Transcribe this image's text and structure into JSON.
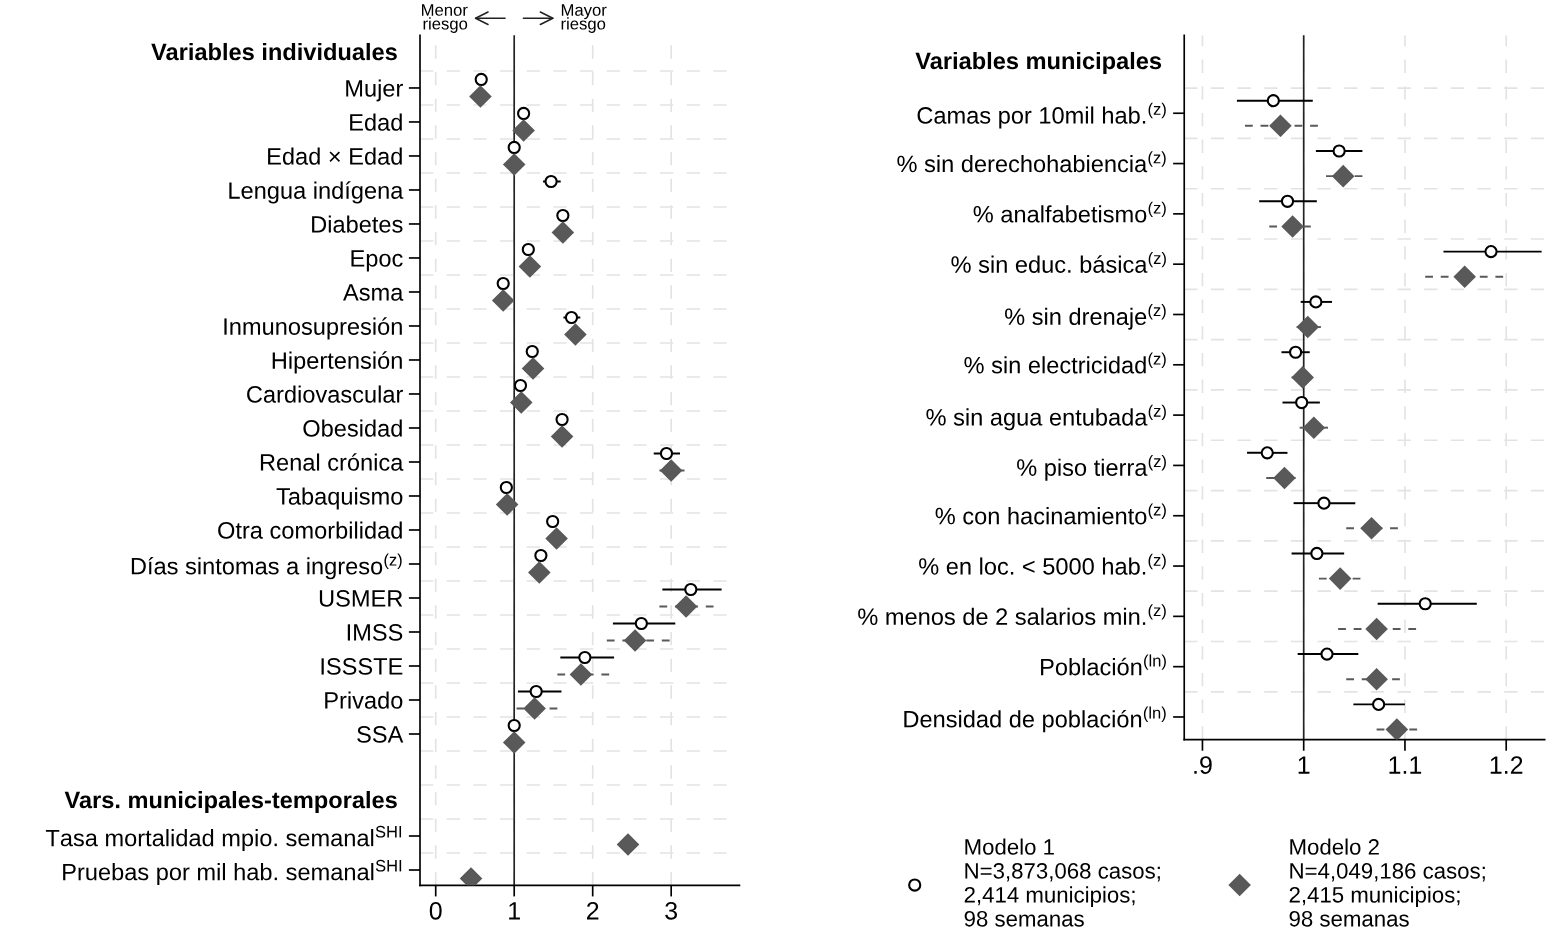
{
  "chart_data": [
    {
      "type": "scatter",
      "orientation": "horizontal",
      "categories": [
        null,
        "Mujer",
        "Edad",
        "Edad × Edad",
        "Lengua indígena",
        "Diabetes",
        "Epoc",
        "Asma",
        "Inmunosupresión",
        "Hipertensión",
        "Cardiovascular",
        "Obesidad",
        "Renal crónica",
        "Tabaquismo",
        "Otra comorbilidad",
        "Días sintomas a ingreso$^{(z)}$",
        "USMER",
        "IMSS",
        "ISSSTE",
        "Privado",
        "SSA",
        null,
        null,
        "Tasa mortalidad mpio. semanal$^{SHI}$",
        "Pruebas por mil hab. semanal$^{SHI}$"
      ],
      "series": [
        {
          "color": "#000000",
          "marker": "circle",
          "line_style": "solid",
          "values": [
            null,
            0.58,
            1.12,
            1.0,
            1.47,
            1.62,
            1.18,
            0.86,
            1.73,
            1.23,
            1.08,
            1.61,
            2.94,
            0.9,
            1.49,
            1.34,
            3.25,
            2.62,
            1.9,
            1.28,
            1.0,
            null,
            null,
            null,
            null
          ],
          "errors": [
            null,
            null,
            null,
            null,
            [
              1.38,
              1.58
            ],
            null,
            null,
            null,
            [
              1.64,
              1.83
            ],
            null,
            null,
            null,
            [
              2.79,
              3.1
            ],
            null,
            null,
            null,
            [
              2.9,
              3.63
            ],
            [
              2.27,
              3.04
            ],
            [
              1.6,
              2.26
            ],
            [
              1.06,
              1.59
            ],
            null,
            null,
            null,
            null,
            null
          ]
        },
        {
          "color": "#595959",
          "marker": "diamond",
          "line_style": "dashed",
          "values": [
            null,
            0.57,
            1.12,
            1.0,
            null,
            1.62,
            1.2,
            0.86,
            1.78,
            1.24,
            1.09,
            1.61,
            3.0,
            0.91,
            1.54,
            1.32,
            3.19,
            2.54,
            1.85,
            1.26,
            1.0,
            null,
            null,
            2.45,
            0.45
          ],
          "errors": [
            null,
            null,
            null,
            null,
            null,
            null,
            null,
            null,
            null,
            null,
            null,
            null,
            [
              2.85,
              3.17
            ],
            null,
            null,
            null,
            [
              2.85,
              3.54
            ],
            [
              2.18,
              2.98
            ],
            [
              1.55,
              2.21
            ],
            [
              1.03,
              1.55
            ],
            null,
            null,
            null,
            null,
            null
          ]
        }
      ],
      "xlim": [
        -0.2,
        3.87
      ],
      "xticks": [
        0,
        1,
        2,
        3
      ],
      "grid": true,
      "ref_lines": [
        {
          "axis": "x",
          "value": 1
        }
      ],
      "annotations": [
        "Variables individuales",
        "Vars. municipales-temporales",
        "Menor\nriesgo",
        "Mayor\nriesgo"
      ]
    },
    {
      "type": "scatter",
      "orientation": "horizontal",
      "categories": [
        null,
        "Camas por 10mil hab.$^{(z)}$",
        "% sin derechohabiencia$^{(z)}$",
        "% analfabetismo$^{(z)}$",
        "% sin educ. básica$^{(z)}$",
        "% sin drenaje$^{(z)}$",
        "% sin electricidad$^{(z)}$",
        "% sin agua entubada$^{(z)}$",
        "% piso tierra$^{(z)}$",
        "% con hacinamiento$^{(z)}$",
        "% en loc. < 5000 hab.$^{(z)}$",
        "% menos de 2 salarios min.$^{(z)}$",
        "Población$^{(ln)}$",
        "Densidad de población$^{(ln)}$"
      ],
      "series": [
        {
          "name": "Modelo 1\nN=3,873,068 casos;\n2,414 municipios;\n98 semanas",
          "color": "#000000",
          "marker": "circle",
          "line_style": "solid",
          "values": [
            null,
            0.97,
            1.035,
            0.984,
            1.185,
            1.012,
            0.992,
            0.998,
            0.964,
            1.02,
            1.013,
            1.12,
            1.023,
            1.074
          ],
          "errors": [
            null,
            [
              0.935,
              1.008
            ],
            [
              1.013,
              1.057
            ],
            [
              0.957,
              1.012
            ],
            [
              1.139,
              1.234
            ],
            [
              0.998,
              1.027
            ],
            [
              0.979,
              1.005
            ],
            [
              0.98,
              1.015
            ],
            [
              0.945,
              0.983
            ],
            [
              0.991,
              1.05
            ],
            [
              0.989,
              1.039
            ],
            [
              1.074,
              1.17
            ],
            [
              0.995,
              1.053
            ],
            [
              1.05,
              1.099
            ]
          ]
        },
        {
          "name": "Modelo 2\nN=4,049,186 casos;\n2,415 municipios;\n98 semanas",
          "color": "#595959",
          "marker": "diamond",
          "line_style": "dashed",
          "values": [
            null,
            0.977,
            1.039,
            0.989,
            1.159,
            1.004,
            0.999,
            1.01,
            0.981,
            1.067,
            1.036,
            1.072,
            1.072,
            1.092
          ],
          "errors": [
            null,
            [
              0.942,
              1.014
            ],
            [
              1.022,
              1.058
            ],
            [
              0.966,
              1.007
            ],
            [
              1.12,
              1.197
            ],
            [
              0.993,
              1.017
            ],
            [
              0.988,
              1.007
            ],
            [
              0.996,
              1.024
            ],
            [
              0.963,
              0.992
            ],
            [
              1.042,
              1.093
            ],
            [
              1.015,
              1.056
            ],
            [
              1.034,
              1.111
            ],
            [
              1.042,
              1.095
            ],
            [
              1.072,
              1.112
            ]
          ]
        }
      ],
      "xlim": [
        0.882,
        1.238
      ],
      "xticks": [
        {
          "value": 0.9,
          "label": ".9"
        },
        1,
        1.1,
        1.2
      ],
      "grid": true,
      "legend": "bottom",
      "ref_lines": [
        {
          "axis": "x",
          "value": 1
        }
      ],
      "annotations": [
        "Variables municipales"
      ]
    }
  ]
}
